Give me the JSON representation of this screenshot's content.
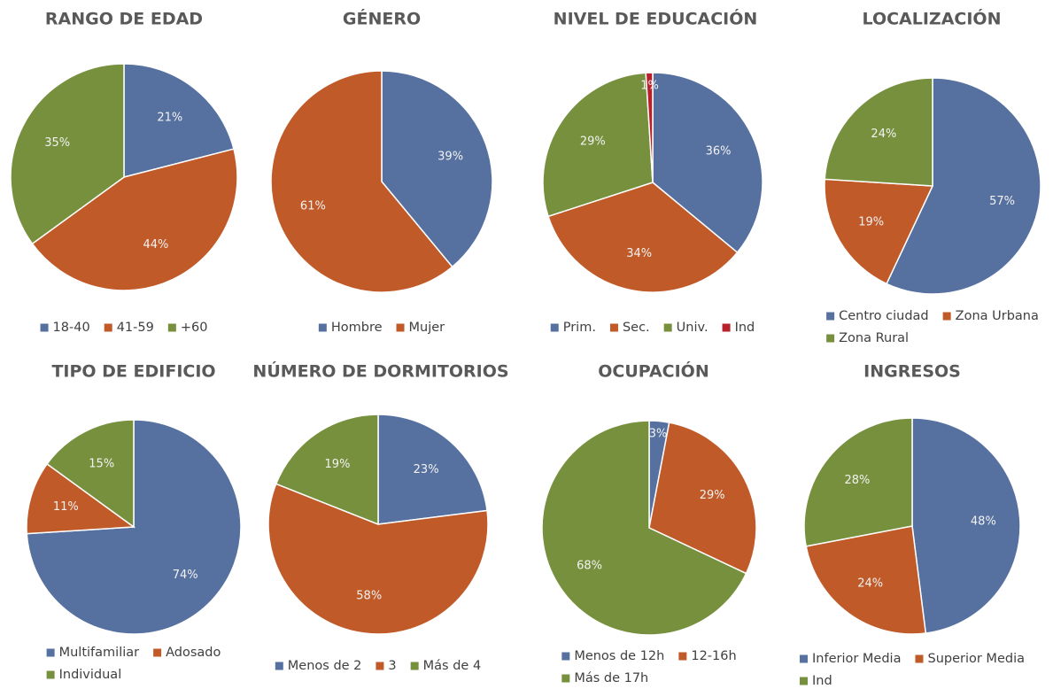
{
  "chart_data": [
    {
      "type": "pie",
      "title": "RANGO DE EDAD",
      "categories": [
        "18-40",
        "41-59",
        "+60"
      ],
      "values": [
        21,
        44,
        35
      ],
      "value_labels": [
        "21%",
        "44%",
        "35%"
      ],
      "colors": [
        "#56709f",
        "#c05a28",
        "#77903d"
      ]
    },
    {
      "type": "pie",
      "title": "GÉNERO",
      "categories": [
        "Hombre",
        "Mujer"
      ],
      "values": [
        39,
        61
      ],
      "value_labels": [
        "39%",
        "61%"
      ],
      "colors": [
        "#56709f",
        "#c05a28"
      ]
    },
    {
      "type": "pie",
      "title": "NIVEL DE EDUCACIÓN",
      "categories": [
        "Prim.",
        "Sec.",
        "Univ.",
        "Ind"
      ],
      "values": [
        36,
        34,
        29,
        1
      ],
      "value_labels": [
        "36%",
        "34%",
        "29%",
        "1%"
      ],
      "colors": [
        "#56709f",
        "#c05a28",
        "#77903d",
        "#b8202c"
      ]
    },
    {
      "type": "pie",
      "title": "LOCALIZACIÓN",
      "categories": [
        "Centro ciudad",
        "Zona Urbana",
        "Zona Rural"
      ],
      "values": [
        57,
        19,
        24
      ],
      "value_labels": [
        "57%",
        "19%",
        "24%"
      ],
      "colors": [
        "#56709f",
        "#c05a28",
        "#77903d"
      ]
    },
    {
      "type": "pie",
      "title": "TIPO DE EDIFICIO",
      "categories": [
        "Multifamiliar",
        "Adosado",
        "Individual"
      ],
      "values": [
        74,
        11,
        15
      ],
      "value_labels": [
        "74%",
        "11%",
        "15%"
      ],
      "colors": [
        "#56709f",
        "#c05a28",
        "#77903d"
      ]
    },
    {
      "type": "pie",
      "title": "NÚMERO DE DORMITORIOS",
      "categories": [
        "Menos de 2",
        "3",
        "Más de 4"
      ],
      "values": [
        23,
        58,
        19
      ],
      "value_labels": [
        "23%",
        "58%",
        "19%"
      ],
      "colors": [
        "#56709f",
        "#c05a28",
        "#77903d"
      ]
    },
    {
      "type": "pie",
      "title": "OCUPACIÓN",
      "categories": [
        "Menos de 12h",
        "12-16h",
        "Más de 17h"
      ],
      "values": [
        3,
        29,
        68
      ],
      "value_labels": [
        "3%",
        "29%",
        "68%"
      ],
      "colors": [
        "#56709f",
        "#c05a28",
        "#77903d"
      ]
    },
    {
      "type": "pie",
      "title": "INGRESOS",
      "categories": [
        "Inferior Media",
        "Superior Media",
        "Ind"
      ],
      "values": [
        48,
        24,
        28
      ],
      "value_labels": [
        "48%",
        "24%",
        "28%"
      ],
      "colors": [
        "#56709f",
        "#c05a28",
        "#77903d"
      ]
    }
  ]
}
